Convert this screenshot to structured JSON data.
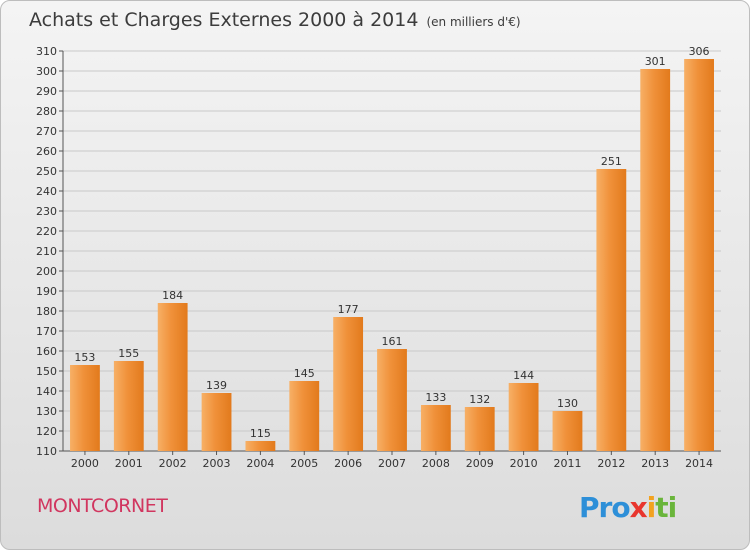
{
  "header": {
    "title": "Achats et Charges Externes 2000 à 2014",
    "unit": "(en milliers d'€)"
  },
  "footer": {
    "place": "MONTCORNET",
    "logo": [
      "Pro",
      "x",
      "i",
      "ti"
    ]
  },
  "chart_data": {
    "type": "bar",
    "title": "Achats et Charges Externes 2000 à 2014",
    "subtitle": "(en milliers d'€)",
    "xlabel": "",
    "ylabel": "",
    "categories": [
      "2000",
      "2001",
      "2002",
      "2003",
      "2004",
      "2005",
      "2006",
      "2007",
      "2008",
      "2009",
      "2010",
      "2011",
      "2012",
      "2013",
      "2014"
    ],
    "values": [
      153,
      155,
      184,
      139,
      115,
      145,
      177,
      161,
      133,
      132,
      144,
      130,
      251,
      301,
      306
    ],
    "ylim": [
      110,
      310
    ],
    "ytick_step": 10,
    "grid": true,
    "bar_color": "#f0913a",
    "bar_color_light": "#f7b066",
    "bar_color_dark": "#e27a1c"
  }
}
